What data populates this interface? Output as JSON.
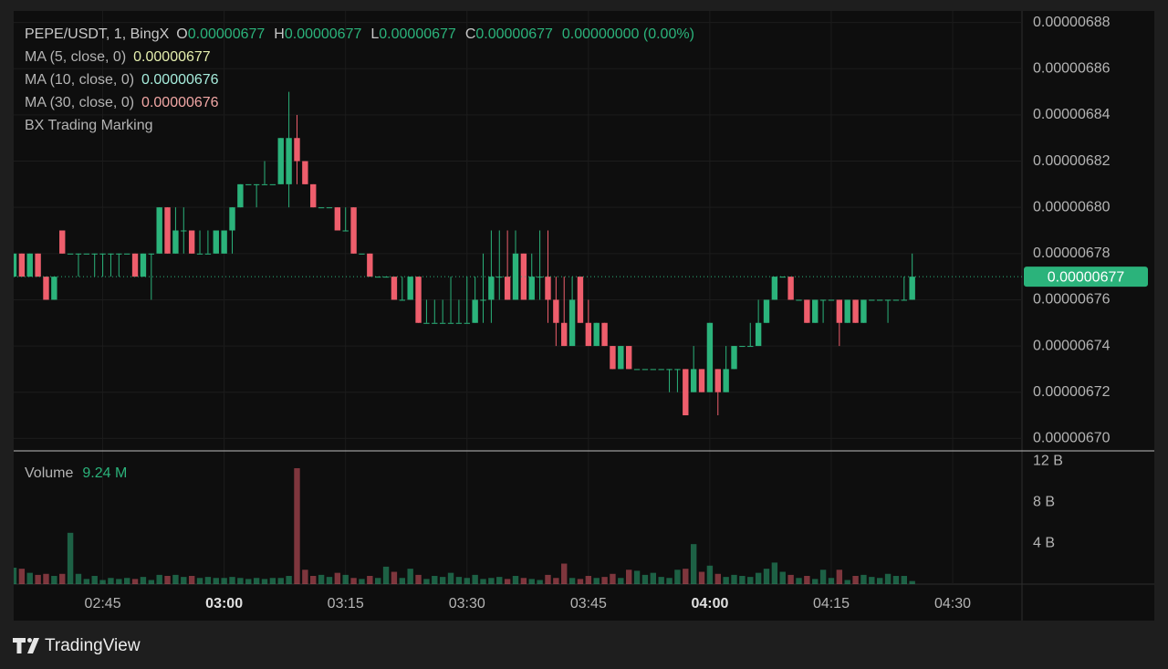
{
  "chart_data": {
    "type": "candlestick",
    "header": {
      "symbol": "PEPE/USDT, 1, BingX",
      "ohlc": [
        {
          "label": "O",
          "value": 6.77e-06
        },
        {
          "label": "H",
          "value": 6.77e-06
        },
        {
          "label": "L",
          "value": 6.77e-06
        },
        {
          "label": "C",
          "value": 6.77e-06
        }
      ],
      "change": "0.00000000 (0.00%)"
    },
    "indicators": [
      {
        "name": "MA (5, close, 0)",
        "value": 6.77e-06,
        "color": "#e4eeae"
      },
      {
        "name": "MA (10, close, 0)",
        "value": 6.76e-06,
        "color": "#a6ecdc"
      },
      {
        "name": "MA (30, close, 0)",
        "value": 6.76e-06,
        "color": "#f2a7a5"
      },
      {
        "name": "BX Trading Marking"
      }
    ],
    "up_color": "#2bb37b",
    "down_color": "#ee5e6c",
    "x": [
      "02:34",
      "02:35",
      "02:36",
      "02:37",
      "02:38",
      "02:39",
      "02:40",
      "02:41",
      "02:42",
      "02:43",
      "02:44",
      "02:45",
      "02:46",
      "02:47",
      "02:48",
      "02:49",
      "02:50",
      "02:51",
      "02:52",
      "02:53",
      "02:54",
      "02:55",
      "02:56",
      "02:57",
      "02:58",
      "02:59",
      "03:00",
      "03:01",
      "03:02",
      "03:03",
      "03:04",
      "03:05",
      "03:06",
      "03:07",
      "03:08",
      "03:09",
      "03:10",
      "03:11",
      "03:12",
      "03:13",
      "03:14",
      "03:15",
      "03:16",
      "03:17",
      "03:18",
      "03:19",
      "03:20",
      "03:21",
      "03:22",
      "03:23",
      "03:24",
      "03:25",
      "03:26",
      "03:27",
      "03:28",
      "03:29",
      "03:30",
      "03:31",
      "03:32",
      "03:33",
      "03:34",
      "03:35",
      "03:36",
      "03:37",
      "03:38",
      "03:39",
      "03:40",
      "03:41",
      "03:42",
      "03:43",
      "03:44",
      "03:45",
      "03:46",
      "03:47",
      "03:48",
      "03:49",
      "03:50",
      "03:51",
      "03:52",
      "03:53",
      "03:54",
      "03:55",
      "03:56",
      "03:57",
      "03:58",
      "03:59",
      "04:00",
      "04:01",
      "04:02",
      "04:03",
      "04:04",
      "04:05",
      "04:06",
      "04:07",
      "04:08",
      "04:09",
      "04:10",
      "04:11",
      "04:12",
      "04:13",
      "04:14",
      "04:15",
      "04:16",
      "04:17",
      "04:18",
      "04:19",
      "04:20",
      "04:21",
      "04:22",
      "04:23",
      "04:24",
      "04:25"
    ],
    "open": [
      6.77e-06,
      6.78e-06,
      6.77e-06,
      6.78e-06,
      6.77e-06,
      6.76e-06,
      6.79e-06,
      6.78e-06,
      6.78e-06,
      6.78e-06,
      6.78e-06,
      6.78e-06,
      6.78e-06,
      6.78e-06,
      6.78e-06,
      6.78e-06,
      6.77e-06,
      6.78e-06,
      6.78e-06,
      6.8e-06,
      6.78e-06,
      6.79e-06,
      6.79e-06,
      6.78e-06,
      6.78e-06,
      6.78e-06,
      6.78e-06,
      6.79e-06,
      6.8e-06,
      6.81e-06,
      6.81e-06,
      6.81e-06,
      6.81e-06,
      6.81e-06,
      6.81e-06,
      6.83e-06,
      6.82e-06,
      6.81e-06,
      6.8e-06,
      6.8e-06,
      6.8e-06,
      6.79e-06,
      6.8e-06,
      6.78e-06,
      6.78e-06,
      6.77e-06,
      6.77e-06,
      6.77e-06,
      6.76e-06,
      6.76e-06,
      6.77e-06,
      6.75e-06,
      6.75e-06,
      6.75e-06,
      6.75e-06,
      6.75e-06,
      6.75e-06,
      6.75e-06,
      6.76e-06,
      6.76e-06,
      6.77e-06,
      6.77e-06,
      6.76e-06,
      6.78e-06,
      6.76e-06,
      6.77e-06,
      6.77e-06,
      6.76e-06,
      6.75e-06,
      6.74e-06,
      6.77e-06,
      6.75e-06,
      6.74e-06,
      6.75e-06,
      6.74e-06,
      6.73e-06,
      6.74e-06,
      6.73e-06,
      6.73e-06,
      6.73e-06,
      6.73e-06,
      6.73e-06,
      6.73e-06,
      6.73e-06,
      6.72e-06,
      6.73e-06,
      6.72e-06,
      6.73e-06,
      6.72e-06,
      6.73e-06,
      6.74e-06,
      6.74e-06,
      6.74e-06,
      6.75e-06,
      6.76e-06,
      6.77e-06,
      6.77e-06,
      6.76e-06,
      6.76e-06,
      6.75e-06,
      6.76e-06,
      6.76e-06,
      6.76e-06,
      6.75e-06,
      6.76e-06,
      6.75e-06,
      6.76e-06,
      6.76e-06,
      6.76e-06,
      6.76e-06,
      6.76e-06,
      6.76e-06
    ],
    "high": [
      6.78e-06,
      6.78e-06,
      6.78e-06,
      6.78e-06,
      6.77e-06,
      6.77e-06,
      6.79e-06,
      6.78e-06,
      6.78e-06,
      6.78e-06,
      6.78e-06,
      6.78e-06,
      6.78e-06,
      6.78e-06,
      6.78e-06,
      6.78e-06,
      6.78e-06,
      6.78e-06,
      6.8e-06,
      6.8e-06,
      6.8e-06,
      6.8e-06,
      6.79e-06,
      6.79e-06,
      6.79e-06,
      6.79e-06,
      6.79e-06,
      6.8e-06,
      6.81e-06,
      6.81e-06,
      6.81e-06,
      6.82e-06,
      6.81e-06,
      6.83e-06,
      6.85e-06,
      6.84e-06,
      6.82e-06,
      6.81e-06,
      6.8e-06,
      6.8e-06,
      6.8e-06,
      6.8e-06,
      6.8e-06,
      6.78e-06,
      6.78e-06,
      6.77e-06,
      6.77e-06,
      6.77e-06,
      6.77e-06,
      6.77e-06,
      6.77e-06,
      6.76e-06,
      6.76e-06,
      6.76e-06,
      6.77e-06,
      6.76e-06,
      6.77e-06,
      6.77e-06,
      6.78e-06,
      6.79e-06,
      6.79e-06,
      6.79e-06,
      6.79e-06,
      6.78e-06,
      6.78e-06,
      6.79e-06,
      6.79e-06,
      6.77e-06,
      6.77e-06,
      6.77e-06,
      6.77e-06,
      6.76e-06,
      6.75e-06,
      6.75e-06,
      6.74e-06,
      6.74e-06,
      6.74e-06,
      6.73e-06,
      6.73e-06,
      6.73e-06,
      6.73e-06,
      6.73e-06,
      6.73e-06,
      6.73e-06,
      6.74e-06,
      6.73e-06,
      6.75e-06,
      6.73e-06,
      6.74e-06,
      6.74e-06,
      6.74e-06,
      6.75e-06,
      6.76e-06,
      6.76e-06,
      6.77e-06,
      6.77e-06,
      6.77e-06,
      6.76e-06,
      6.76e-06,
      6.76e-06,
      6.76e-06,
      6.76e-06,
      6.76e-06,
      6.76e-06,
      6.76e-06,
      6.76e-06,
      6.76e-06,
      6.76e-06,
      6.76e-06,
      6.76e-06,
      6.77e-06,
      6.78e-06
    ],
    "low": [
      6.77e-06,
      6.77e-06,
      6.77e-06,
      6.77e-06,
      6.76e-06,
      6.76e-06,
      6.78e-06,
      6.78e-06,
      6.77e-06,
      6.78e-06,
      6.77e-06,
      6.77e-06,
      6.77e-06,
      6.77e-06,
      6.78e-06,
      6.77e-06,
      6.77e-06,
      6.76e-06,
      6.78e-06,
      6.78e-06,
      6.78e-06,
      6.78e-06,
      6.78e-06,
      6.78e-06,
      6.78e-06,
      6.78e-06,
      6.78e-06,
      6.78e-06,
      6.8e-06,
      6.81e-06,
      6.8e-06,
      6.81e-06,
      6.81e-06,
      6.81e-06,
      6.8e-06,
      6.81e-06,
      6.81e-06,
      6.8e-06,
      6.8e-06,
      6.8e-06,
      6.79e-06,
      6.79e-06,
      6.78e-06,
      6.78e-06,
      6.77e-06,
      6.77e-06,
      6.77e-06,
      6.76e-06,
      6.76e-06,
      6.76e-06,
      6.75e-06,
      6.75e-06,
      6.75e-06,
      6.75e-06,
      6.75e-06,
      6.75e-06,
      6.75e-06,
      6.75e-06,
      6.75e-06,
      6.75e-06,
      6.76e-06,
      6.76e-06,
      6.76e-06,
      6.76e-06,
      6.76e-06,
      6.76e-06,
      6.75e-06,
      6.74e-06,
      6.74e-06,
      6.74e-06,
      6.75e-06,
      6.74e-06,
      6.74e-06,
      6.74e-06,
      6.73e-06,
      6.73e-06,
      6.73e-06,
      6.73e-06,
      6.73e-06,
      6.73e-06,
      6.73e-06,
      6.72e-06,
      6.72e-06,
      6.71e-06,
      6.72e-06,
      6.72e-06,
      6.72e-06,
      6.71e-06,
      6.72e-06,
      6.73e-06,
      6.74e-06,
      6.74e-06,
      6.74e-06,
      6.75e-06,
      6.76e-06,
      6.77e-06,
      6.76e-06,
      6.76e-06,
      6.75e-06,
      6.75e-06,
      6.75e-06,
      6.76e-06,
      6.74e-06,
      6.75e-06,
      6.75e-06,
      6.75e-06,
      6.76e-06,
      6.76e-06,
      6.75e-06,
      6.76e-06,
      6.76e-06,
      6.76e-06
    ],
    "close": [
      6.78e-06,
      6.77e-06,
      6.78e-06,
      6.77e-06,
      6.76e-06,
      6.77e-06,
      6.78e-06,
      6.78e-06,
      6.78e-06,
      6.78e-06,
      6.78e-06,
      6.78e-06,
      6.78e-06,
      6.78e-06,
      6.78e-06,
      6.77e-06,
      6.78e-06,
      6.78e-06,
      6.8e-06,
      6.78e-06,
      6.79e-06,
      6.79e-06,
      6.78e-06,
      6.78e-06,
      6.78e-06,
      6.79e-06,
      6.79e-06,
      6.8e-06,
      6.81e-06,
      6.81e-06,
      6.81e-06,
      6.81e-06,
      6.81e-06,
      6.83e-06,
      6.83e-06,
      6.82e-06,
      6.81e-06,
      6.8e-06,
      6.8e-06,
      6.8e-06,
      6.79e-06,
      6.79e-06,
      6.78e-06,
      6.78e-06,
      6.77e-06,
      6.77e-06,
      6.77e-06,
      6.76e-06,
      6.76e-06,
      6.77e-06,
      6.75e-06,
      6.75e-06,
      6.75e-06,
      6.75e-06,
      6.75e-06,
      6.75e-06,
      6.75e-06,
      6.76e-06,
      6.76e-06,
      6.77e-06,
      6.77e-06,
      6.76e-06,
      6.78e-06,
      6.76e-06,
      6.77e-06,
      6.77e-06,
      6.76e-06,
      6.75e-06,
      6.74e-06,
      6.76e-06,
      6.75e-06,
      6.74e-06,
      6.75e-06,
      6.74e-06,
      6.73e-06,
      6.74e-06,
      6.73e-06,
      6.73e-06,
      6.73e-06,
      6.73e-06,
      6.73e-06,
      6.73e-06,
      6.73e-06,
      6.71e-06,
      6.73e-06,
      6.72e-06,
      6.75e-06,
      6.72e-06,
      6.73e-06,
      6.74e-06,
      6.74e-06,
      6.74e-06,
      6.75e-06,
      6.76e-06,
      6.77e-06,
      6.77e-06,
      6.76e-06,
      6.76e-06,
      6.75e-06,
      6.76e-06,
      6.76e-06,
      6.76e-06,
      6.75e-06,
      6.76e-06,
      6.75e-06,
      6.76e-06,
      6.76e-06,
      6.76e-06,
      6.76e-06,
      6.76e-06,
      6.76e-06,
      6.77e-06
    ],
    "last_price": 6.77e-06,
    "xlim": [
      "02:34",
      "04:38"
    ],
    "xticks": [
      "02:45",
      "03:00",
      "03:15",
      "03:30",
      "03:45",
      "04:00",
      "04:15",
      "04:30"
    ],
    "ylim": [
      6.695e-06,
      6.885e-06
    ],
    "yticks": [
      {
        "value": 6.7e-06,
        "label": "0.00000670"
      },
      6.72e-06,
      6.74e-06,
      6.76e-06,
      6.78e-06,
      {
        "value": 6.8e-06,
        "label": "0.00000680"
      },
      6.82e-06,
      6.84e-06,
      6.86e-06,
      6.88e-06
    ],
    "grid": true,
    "volume": {
      "title": "Volume",
      "current": "9.24 M",
      "values": [
        1.6,
        1.5,
        1.1,
        0.9,
        1.0,
        0.8,
        1.0,
        5.0,
        1.0,
        0.5,
        0.8,
        0.4,
        0.6,
        0.5,
        0.6,
        0.5,
        0.7,
        0.4,
        0.9,
        0.8,
        0.9,
        0.7,
        0.8,
        0.6,
        0.7,
        0.6,
        0.6,
        0.7,
        0.6,
        0.5,
        0.6,
        0.5,
        0.6,
        0.6,
        0.8,
        11.3,
        1.4,
        0.8,
        0.9,
        0.7,
        1.1,
        0.9,
        0.6,
        0.5,
        0.8,
        0.6,
        1.7,
        1.2,
        0.6,
        1.5,
        0.9,
        0.5,
        0.8,
        0.7,
        1.1,
        0.7,
        0.6,
        0.9,
        0.5,
        0.6,
        0.7,
        0.5,
        0.8,
        0.6,
        0.5,
        0.4,
        0.9,
        0.6,
        2.0,
        0.6,
        0.5,
        0.8,
        0.6,
        0.7,
        1.0,
        0.6,
        1.4,
        1.3,
        0.9,
        1.1,
        0.7,
        0.6,
        1.4,
        1.5,
        3.9,
        1.2,
        1.8,
        1.0,
        0.7,
        0.9,
        0.8,
        0.7,
        1.1,
        1.5,
        2.1,
        1.2,
        0.9,
        0.6,
        0.8,
        0.5,
        1.4,
        0.6,
        1.4,
        0.4,
        0.8,
        0.9,
        0.7,
        0.6,
        1.0,
        0.8,
        0.8,
        0.3
      ],
      "ylim": [
        0,
        12.9
      ],
      "yticks": [
        {
          "value": 4,
          "label": "4 B"
        },
        {
          "value": 8,
          "label": "8 B"
        },
        {
          "value": 12,
          "label": "12 B"
        }
      ]
    },
    "footer": "TradingView"
  }
}
